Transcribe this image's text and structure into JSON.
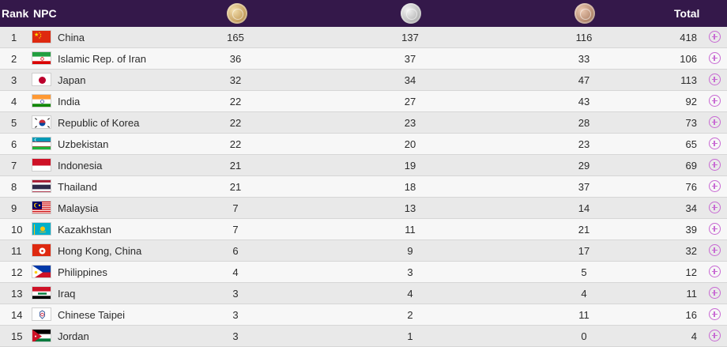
{
  "header": {
    "rank_label": "Rank",
    "npc_label": "NPC",
    "total_label": "Total",
    "medals": [
      {
        "type": "gold",
        "icon": "gold-medal-icon"
      },
      {
        "type": "silver",
        "icon": "silver-medal-icon"
      },
      {
        "type": "bronze",
        "icon": "bronze-medal-icon"
      }
    ]
  },
  "colors": {
    "header_bg": "#34184a",
    "row_odd": "#e9e9e9",
    "row_even": "#f7f7f7",
    "expand_icon": "#c86ad3"
  },
  "rows": [
    {
      "rank": "1",
      "name": "China",
      "flag": "china-flag-icon",
      "gold": "165",
      "silver": "137",
      "bronze": "116",
      "total": "418"
    },
    {
      "rank": "2",
      "name": "Islamic Rep. of Iran",
      "flag": "iran-flag-icon",
      "gold": "36",
      "silver": "37",
      "bronze": "33",
      "total": "106"
    },
    {
      "rank": "3",
      "name": "Japan",
      "flag": "japan-flag-icon",
      "gold": "32",
      "silver": "34",
      "bronze": "47",
      "total": "113"
    },
    {
      "rank": "4",
      "name": "India",
      "flag": "india-flag-icon",
      "gold": "22",
      "silver": "27",
      "bronze": "43",
      "total": "92"
    },
    {
      "rank": "5",
      "name": "Republic of Korea",
      "flag": "korea-flag-icon",
      "gold": "22",
      "silver": "23",
      "bronze": "28",
      "total": "73"
    },
    {
      "rank": "6",
      "name": "Uzbekistan",
      "flag": "uzbekistan-flag-icon",
      "gold": "22",
      "silver": "20",
      "bronze": "23",
      "total": "65"
    },
    {
      "rank": "7",
      "name": "Indonesia",
      "flag": "indonesia-flag-icon",
      "gold": "21",
      "silver": "19",
      "bronze": "29",
      "total": "69"
    },
    {
      "rank": "8",
      "name": "Thailand",
      "flag": "thailand-flag-icon",
      "gold": "21",
      "silver": "18",
      "bronze": "37",
      "total": "76"
    },
    {
      "rank": "9",
      "name": "Malaysia",
      "flag": "malaysia-flag-icon",
      "gold": "7",
      "silver": "13",
      "bronze": "14",
      "total": "34"
    },
    {
      "rank": "10",
      "name": "Kazakhstan",
      "flag": "kazakhstan-flag-icon",
      "gold": "7",
      "silver": "11",
      "bronze": "21",
      "total": "39"
    },
    {
      "rank": "11",
      "name": "Hong Kong, China",
      "flag": "hong-kong-flag-icon",
      "gold": "6",
      "silver": "9",
      "bronze": "17",
      "total": "32"
    },
    {
      "rank": "12",
      "name": "Philippines",
      "flag": "philippines-flag-icon",
      "gold": "4",
      "silver": "3",
      "bronze": "5",
      "total": "12"
    },
    {
      "rank": "13",
      "name": "Iraq",
      "flag": "iraq-flag-icon",
      "gold": "3",
      "silver": "4",
      "bronze": "4",
      "total": "11"
    },
    {
      "rank": "14",
      "name": "Chinese Taipei",
      "flag": "chinese-taipei-flag-icon",
      "gold": "3",
      "silver": "2",
      "bronze": "11",
      "total": "16"
    },
    {
      "rank": "15",
      "name": "Jordan",
      "flag": "jordan-flag-icon",
      "gold": "3",
      "silver": "1",
      "bronze": "0",
      "total": "4"
    }
  ]
}
